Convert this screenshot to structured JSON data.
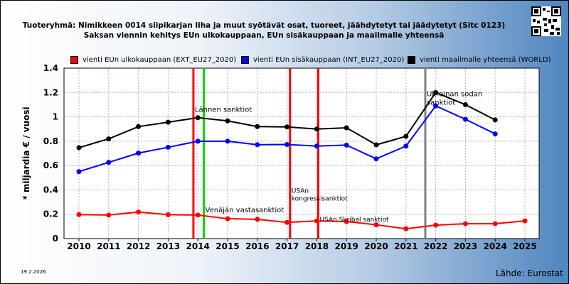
{
  "header": {
    "title_line1": "Tuoteryhmä: Nimikkeen 0014 siipikarjan liha ja muut syötävät osat, tuoreet, jäähdytetyt tai jäädytetyt (Sitc 0123)",
    "title_line2": "Saksan viennin kehitys EUn ulkokauppaan, EUn sisäkauppaan ja maailmalle yhteensä"
  },
  "footer": {
    "date": "19.2.2026",
    "source": "Lähde: Eurostat"
  },
  "chart_data": {
    "type": "line",
    "ylabel": "* miljardia € / vuosi",
    "xlabel": "",
    "ylim": [
      0,
      1.4
    ],
    "yticks": [
      "0",
      "0.2",
      "0.4",
      "0.6",
      "0.8",
      "1",
      "1.2",
      "1.4"
    ],
    "categories": [
      "2010",
      "2011",
      "2012",
      "2013",
      "2014",
      "2015",
      "2016",
      "2017",
      "2018",
      "2019",
      "2020",
      "2021",
      "2022",
      "2023",
      "2024",
      "2025"
    ],
    "grid": true,
    "legend_position": "top",
    "series": [
      {
        "name": "vienti EUn ulkokauppaan (EXT_EU27_2020)",
        "color": "#ff0000",
        "values": [
          0.197,
          0.193,
          0.218,
          0.196,
          0.193,
          0.163,
          0.158,
          0.133,
          0.145,
          0.14,
          0.113,
          0.08,
          0.11,
          0.122,
          0.122,
          0.145
        ]
      },
      {
        "name": "vienti EUn sisäkauppaan (INT_EU27_2020)",
        "color": "#0000ff",
        "values": [
          0.55,
          0.626,
          0.702,
          0.75,
          0.8,
          0.8,
          0.771,
          0.773,
          0.76,
          0.768,
          0.655,
          0.76,
          1.09,
          0.98,
          0.86,
          null
        ]
      },
      {
        "name": "vienti maailmalle yhteensä (WORLD)",
        "color": "#000000",
        "values": [
          0.747,
          0.819,
          0.92,
          0.956,
          0.993,
          0.967,
          0.92,
          0.917,
          0.9,
          0.91,
          0.77,
          0.84,
          1.2,
          1.1,
          0.975,
          null
        ]
      }
    ],
    "annotations": [
      {
        "x": 2013.85,
        "color": "#ff0000",
        "label": "Lännen sanktiot",
        "label_y": 1.04
      },
      {
        "x": 2014.2,
        "color": "#00dd00",
        "label": "Venäjän vastasanktiot",
        "label_y": 0.215
      },
      {
        "x": 2017.1,
        "color": "#ff0000",
        "label": "USAn kongressisanktiot",
        "label_y": 0.375
      },
      {
        "x": 2018.05,
        "color": "#ff0000",
        "label": "USAn Skribal sanktiot",
        "label_y": 0.14
      },
      {
        "x": 2021.65,
        "color": "#808080",
        "label": "Ukrainan sodan sanktiot",
        "label_y": 1.17
      }
    ]
  }
}
